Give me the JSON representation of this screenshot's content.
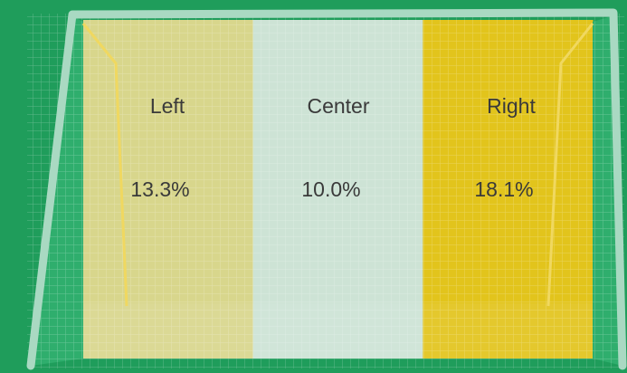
{
  "zones": [
    {
      "label": "Left",
      "value": "13.3%",
      "color": "#d8d68c"
    },
    {
      "label": "Center",
      "value": "10.0%",
      "color": "#cde3d5"
    },
    {
      "label": "Right",
      "value": "18.1%",
      "color": "#e2c41c"
    }
  ]
}
